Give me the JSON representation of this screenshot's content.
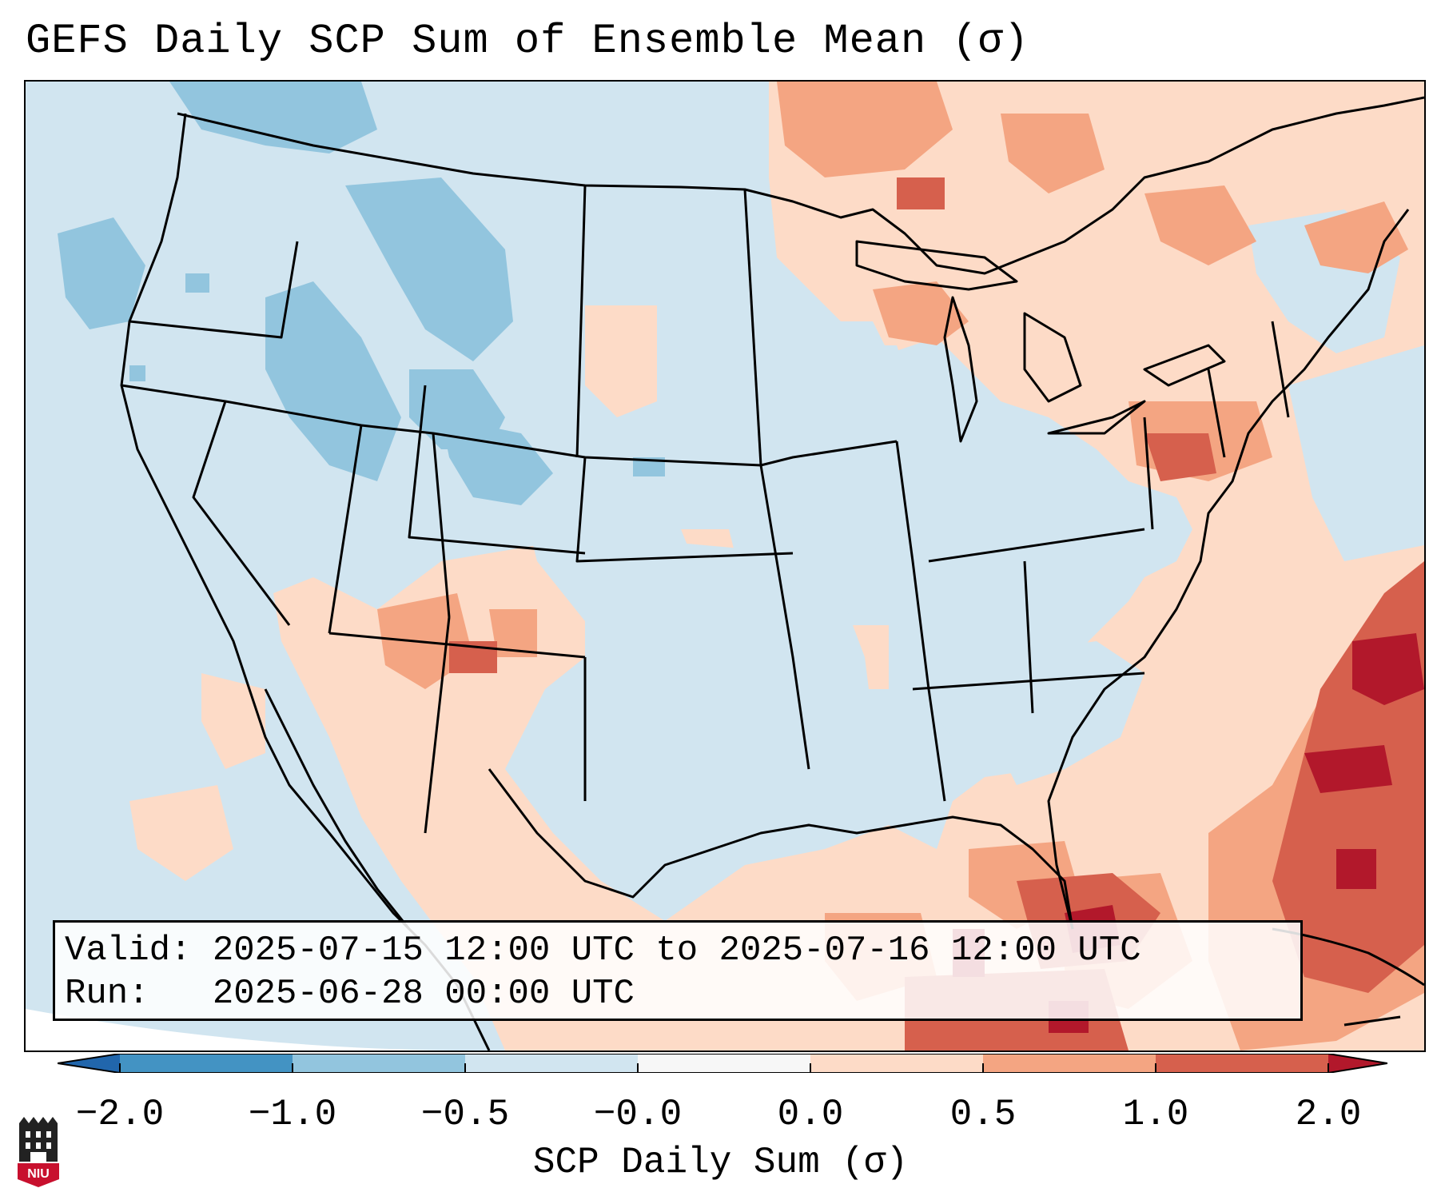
{
  "title": "GEFS Daily SCP Sum of Ensemble Mean (σ)",
  "info": {
    "valid_label": "Valid:",
    "valid_value": "2025-07-15 12:00 UTC to 2025-07-16 12:00 UTC",
    "run_label": "Run:",
    "run_value": "2025-06-28 00:00 UTC"
  },
  "colorbar": {
    "label": "SCP Daily Sum (σ)",
    "ticks": [
      "−2.0",
      "−1.0",
      "−0.5",
      "−0.0",
      "0.0",
      "0.5",
      "1.0",
      "2.0"
    ],
    "colors": [
      "#4393c3",
      "#92c5de",
      "#d1e5f0",
      "#f7f7f7",
      "#fddbc7",
      "#f4a582",
      "#d6604d"
    ],
    "extend_low_color": "#2166ac",
    "extend_high_color": "#b2182b"
  },
  "map_colors": {
    "neg_strong": "#92c5de",
    "neg_weak": "#d1e5f0",
    "neutral": "#f7f7f7",
    "pos_weak": "#fddbc7",
    "pos_mid": "#f4a582",
    "pos_strong": "#d6604d",
    "pos_max": "#b2182b"
  },
  "logo_text": "NIU"
}
